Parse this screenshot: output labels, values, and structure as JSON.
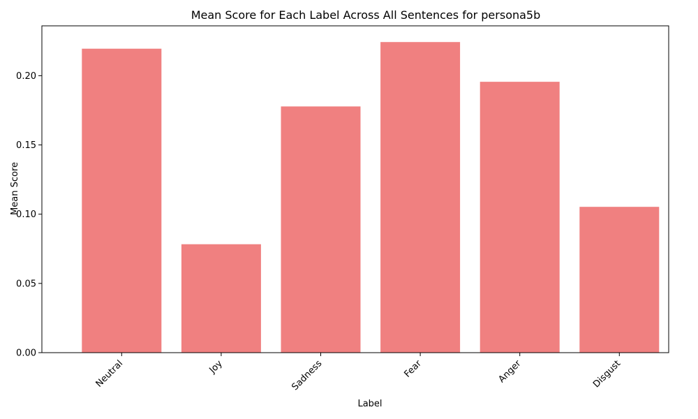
{
  "chart_data": {
    "type": "bar",
    "title": "Mean Score for Each Label Across All Sentences for persona5b",
    "xlabel": "Label",
    "ylabel": "Mean Score",
    "categories": [
      "Neutral",
      "Joy",
      "Sadness",
      "Fear",
      "Anger",
      "Disgust"
    ],
    "values": [
      0.2195,
      0.0783,
      0.1778,
      0.2243,
      0.1956,
      0.1053
    ],
    "ylim": [
      0,
      0.236
    ],
    "yticks": [
      0.0,
      0.05,
      0.1,
      0.15,
      0.2
    ],
    "ytick_labels": [
      "0.00",
      "0.05",
      "0.10",
      "0.15",
      "0.20"
    ],
    "bar_color": "#f08080",
    "grid": false,
    "legend": "none"
  }
}
